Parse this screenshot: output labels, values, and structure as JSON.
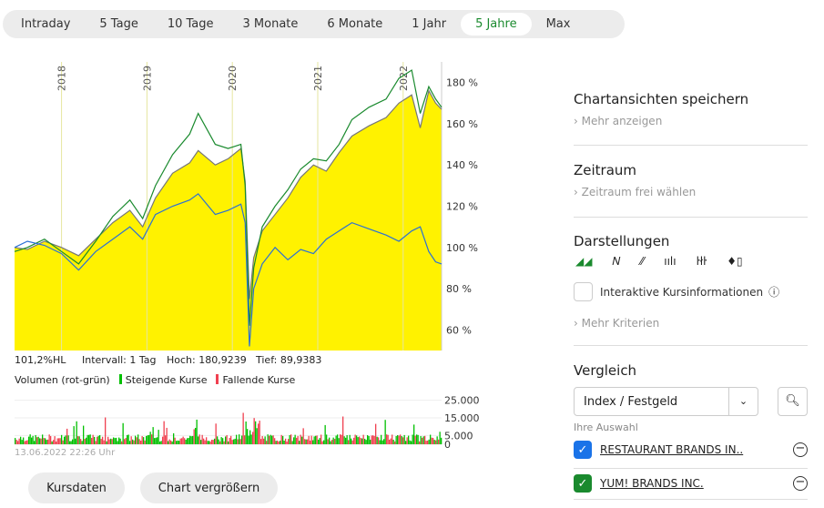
{
  "tabs": [
    {
      "label": "Intraday"
    },
    {
      "label": "5 Tage"
    },
    {
      "label": "10 Tage"
    },
    {
      "label": "3 Monate"
    },
    {
      "label": "6 Monate"
    },
    {
      "label": "1 Jahr"
    },
    {
      "label": "5 Jahre",
      "active": true
    },
    {
      "label": "Max"
    }
  ],
  "chart_data": {
    "type": "line",
    "x_ticks": [
      "2018",
      "2019",
      "2020",
      "2021",
      "2022"
    ],
    "y_ticks": [
      "60 %",
      "80 %",
      "100 %",
      "120 %",
      "140 %",
      "160 %",
      "180 %"
    ],
    "ylim": [
      50,
      190
    ],
    "xlim": [
      2017.45,
      2022.45
    ],
    "series": [
      {
        "role": "area",
        "color": "#fff200",
        "line": "#777777",
        "x": [
          2017.45,
          2017.6,
          2017.8,
          2018.0,
          2018.2,
          2018.4,
          2018.6,
          2018.8,
          2018.95,
          2019.1,
          2019.3,
          2019.5,
          2019.6,
          2019.8,
          2019.95,
          2020.1,
          2020.15,
          2020.2,
          2020.25,
          2020.35,
          2020.5,
          2020.65,
          2020.8,
          2020.95,
          2021.1,
          2021.25,
          2021.4,
          2021.6,
          2021.8,
          2021.95,
          2022.1,
          2022.2,
          2022.3,
          2022.38,
          2022.45
        ],
        "y": [
          100,
          99,
          103,
          100,
          96,
          104,
          112,
          118,
          110,
          124,
          136,
          141,
          147,
          140,
          143,
          148,
          132,
          75,
          95,
          108,
          116,
          124,
          134,
          140,
          137,
          146,
          154,
          159,
          163,
          170,
          174,
          158,
          176,
          170,
          167
        ]
      },
      {
        "role": "line",
        "color": "#1a8a2e",
        "x": [
          2017.45,
          2017.6,
          2017.8,
          2018.0,
          2018.2,
          2018.4,
          2018.6,
          2018.8,
          2018.95,
          2019.1,
          2019.3,
          2019.5,
          2019.6,
          2019.8,
          2019.95,
          2020.1,
          2020.15,
          2020.2,
          2020.25,
          2020.35,
          2020.5,
          2020.65,
          2020.8,
          2020.95,
          2021.1,
          2021.25,
          2021.4,
          2021.6,
          2021.8,
          2021.95,
          2022.1,
          2022.2,
          2022.3,
          2022.38,
          2022.45
        ],
        "y": [
          98,
          100,
          104,
          98,
          92,
          103,
          115,
          123,
          114,
          130,
          145,
          155,
          165,
          150,
          148,
          150,
          130,
          62,
          90,
          110,
          120,
          128,
          138,
          143,
          142,
          150,
          162,
          168,
          172,
          182,
          186,
          165,
          178,
          172,
          168
        ]
      },
      {
        "role": "line",
        "color": "#2a6fd6",
        "x": [
          2017.45,
          2017.6,
          2017.8,
          2018.0,
          2018.2,
          2018.4,
          2018.6,
          2018.8,
          2018.95,
          2019.1,
          2019.3,
          2019.5,
          2019.6,
          2019.8,
          2019.95,
          2020.1,
          2020.15,
          2020.2,
          2020.25,
          2020.35,
          2020.5,
          2020.65,
          2020.8,
          2020.95,
          2021.1,
          2021.25,
          2021.4,
          2021.6,
          2021.8,
          2021.95,
          2022.1,
          2022.2,
          2022.3,
          2022.38,
          2022.45
        ],
        "y": [
          100,
          103,
          101,
          97,
          89,
          98,
          104,
          110,
          104,
          116,
          120,
          123,
          126,
          116,
          118,
          121,
          112,
          52,
          80,
          92,
          100,
          94,
          99,
          97,
          104,
          108,
          112,
          109,
          106,
          103,
          108,
          110,
          98,
          93,
          92
        ]
      }
    ]
  },
  "stats": {
    "hl": "101,2%HL",
    "interval": "Intervall: 1 Tag",
    "high": "Hoch: 180,9239",
    "low": "Tief: 89,9383"
  },
  "volume": {
    "label": "Volumen (rot-grün)",
    "up": "Steigende Kurse",
    "down": "Fallende Kurse",
    "ticks": [
      "25.000",
      "15.000",
      "5.000",
      "0"
    ],
    "up_color": "#00c000",
    "down_color": "#f04050"
  },
  "timestamp": "13.06.2022 22:26 Uhr",
  "buttons": {
    "kursdaten": "Kursdaten",
    "enlarge": "Chart vergrößern"
  },
  "side": {
    "save": {
      "title": "Chartansichten speichern",
      "link": "Mehr anzeigen"
    },
    "range": {
      "title": "Zeitraum",
      "link": "Zeitraum frei wählen"
    },
    "display": {
      "title": "Darstellungen",
      "interactive": "Interaktive Kursinformationen",
      "more": "Mehr Kriterien"
    },
    "compare": {
      "title": "Vergleich",
      "select": "Index / Festgeld",
      "choice": "Ihre Auswahl",
      "items": [
        {
          "name": "RESTAURANT BRANDS IN..",
          "color": "#1a73e8"
        },
        {
          "name": "YUM! BRANDS INC.",
          "color": "#1a8a2e"
        }
      ]
    }
  }
}
